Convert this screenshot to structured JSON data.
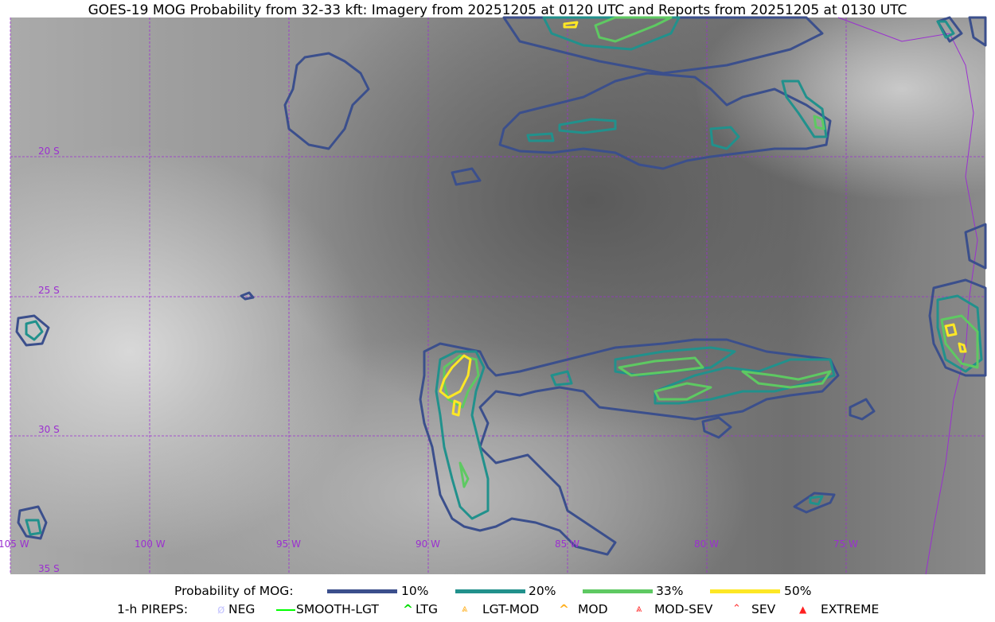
{
  "title": "GOES-19 MOG Probability from 32-33 kft: Imagery from 20251205 at 0120 UTC and Reports from 20251205 at 0130 UTC",
  "grid": {
    "color": "#9b30d0",
    "lon_labels": [
      "105 W",
      "100 W",
      "95 W",
      "90 W",
      "85 W",
      "80 W",
      "75 W"
    ],
    "lat_labels": [
      "20 S",
      "25 S",
      "30 S",
      "35 S"
    ]
  },
  "contour_colors": {
    "p10": "#3b4f8c",
    "p20": "#21918c",
    "p33": "#5ec962",
    "p50": "#fde725"
  },
  "legend": {
    "prob_label": "Probability of MOG:",
    "prob_items": [
      {
        "label": "10%",
        "color": "#3b4f8c"
      },
      {
        "label": "20%",
        "color": "#21918c"
      },
      {
        "label": "33%",
        "color": "#5ec962"
      },
      {
        "label": "50%",
        "color": "#fde725"
      }
    ],
    "pirep_label": "1-h PIREPS:",
    "pirep_items": [
      {
        "label": "NEG",
        "icon": "neg-circle-icon",
        "color": "#c8c8ff"
      },
      {
        "label": "SMOOTH-LGT",
        "icon": "line-icon",
        "color": "#00ff00"
      },
      {
        "label": "LTG",
        "icon": "caret-icon",
        "color": "#00dd00"
      },
      {
        "label": "LGT-MOD",
        "icon": "caret-bar-icon",
        "color": "#ffb020"
      },
      {
        "label": "MOD",
        "icon": "caret-icon",
        "color": "#ffb020"
      },
      {
        "label": "MOD-SEV",
        "icon": "double-caret-bar-icon",
        "color": "#ff3030"
      },
      {
        "label": "SEV",
        "icon": "double-caret-icon",
        "color": "#ff3030"
      },
      {
        "label": "EXTREME",
        "icon": "filled-triangle-icon",
        "color": "#ff2020"
      }
    ]
  }
}
